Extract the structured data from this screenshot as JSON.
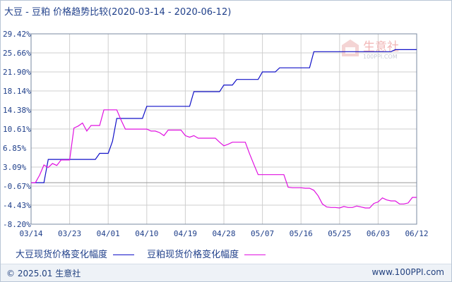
{
  "chart_data": {
    "type": "line",
    "title": "大豆 - 豆粕 价格趋势比较(2020-03-14 - 2020-06-12)",
    "x_ticks": [
      "03/14",
      "03/23",
      "04/01",
      "04/10",
      "04/19",
      "04/28",
      "05/07",
      "05/16",
      "05/25",
      "06/03",
      "06/12"
    ],
    "y_ticks": [
      "29.42%",
      "25.66%",
      "21.90%",
      "18.14%",
      "14.38%",
      "10.61%",
      "6.85%",
      "3.09%",
      "-0.67%",
      "-4.43%",
      "-8.20%"
    ],
    "ylim": [
      -8.2,
      29.42
    ],
    "x_start": "2020-03-14",
    "x_end": "2020-06-12",
    "grid": true,
    "series": [
      {
        "name": "大豆现货价格变化幅度",
        "color": "#1010c8",
        "points": [
          [
            "2020-03-14",
            0
          ],
          [
            "2020-03-15",
            0
          ],
          [
            "2020-03-16",
            0
          ],
          [
            "2020-03-17",
            0
          ],
          [
            "2020-03-18",
            4.6
          ],
          [
            "2020-03-19",
            4.6
          ],
          [
            "2020-03-20",
            4.6
          ],
          [
            "2020-03-21",
            4.6
          ],
          [
            "2020-03-22",
            4.6
          ],
          [
            "2020-03-23",
            4.6
          ],
          [
            "2020-03-24",
            4.6
          ],
          [
            "2020-03-25",
            4.6
          ],
          [
            "2020-03-26",
            4.6
          ],
          [
            "2020-03-27",
            4.6
          ],
          [
            "2020-03-28",
            4.6
          ],
          [
            "2020-03-29",
            4.6
          ],
          [
            "2020-03-30",
            5.8
          ],
          [
            "2020-03-31",
            5.8
          ],
          [
            "2020-04-01",
            5.8
          ],
          [
            "2020-04-02",
            8.2
          ],
          [
            "2020-04-03",
            12.7
          ],
          [
            "2020-04-04",
            12.7
          ],
          [
            "2020-04-05",
            12.7
          ],
          [
            "2020-04-06",
            12.7
          ],
          [
            "2020-04-07",
            12.7
          ],
          [
            "2020-04-08",
            12.7
          ],
          [
            "2020-04-09",
            12.7
          ],
          [
            "2020-04-10",
            15.1
          ],
          [
            "2020-04-11",
            15.1
          ],
          [
            "2020-04-12",
            15.1
          ],
          [
            "2020-04-13",
            15.1
          ],
          [
            "2020-04-14",
            15.1
          ],
          [
            "2020-04-15",
            15.1
          ],
          [
            "2020-04-16",
            15.1
          ],
          [
            "2020-04-17",
            15.1
          ],
          [
            "2020-04-18",
            15.1
          ],
          [
            "2020-04-19",
            15.1
          ],
          [
            "2020-04-20",
            15.1
          ],
          [
            "2020-04-21",
            18.0
          ],
          [
            "2020-04-22",
            18.0
          ],
          [
            "2020-04-23",
            18.0
          ],
          [
            "2020-04-24",
            18.0
          ],
          [
            "2020-04-25",
            18.0
          ],
          [
            "2020-04-26",
            18.0
          ],
          [
            "2020-04-27",
            18.0
          ],
          [
            "2020-04-28",
            19.3
          ],
          [
            "2020-04-29",
            19.3
          ],
          [
            "2020-04-30",
            19.3
          ],
          [
            "2020-05-01",
            20.4
          ],
          [
            "2020-05-02",
            20.4
          ],
          [
            "2020-05-03",
            20.4
          ],
          [
            "2020-05-04",
            20.4
          ],
          [
            "2020-05-05",
            20.4
          ],
          [
            "2020-05-06",
            20.4
          ],
          [
            "2020-05-07",
            21.9
          ],
          [
            "2020-05-08",
            21.9
          ],
          [
            "2020-05-09",
            21.9
          ],
          [
            "2020-05-10",
            21.9
          ],
          [
            "2020-05-11",
            22.7
          ],
          [
            "2020-05-12",
            22.7
          ],
          [
            "2020-05-13",
            22.7
          ],
          [
            "2020-05-14",
            22.7
          ],
          [
            "2020-05-15",
            22.7
          ],
          [
            "2020-05-16",
            22.7
          ],
          [
            "2020-05-17",
            22.7
          ],
          [
            "2020-05-18",
            22.7
          ],
          [
            "2020-05-19",
            25.9
          ],
          [
            "2020-05-20",
            25.9
          ],
          [
            "2020-05-21",
            25.9
          ],
          [
            "2020-05-22",
            25.9
          ],
          [
            "2020-05-23",
            25.9
          ],
          [
            "2020-05-24",
            25.9
          ],
          [
            "2020-05-25",
            25.9
          ],
          [
            "2020-05-26",
            25.9
          ],
          [
            "2020-05-27",
            25.9
          ],
          [
            "2020-05-28",
            25.9
          ],
          [
            "2020-05-29",
            25.9
          ],
          [
            "2020-05-30",
            25.9
          ],
          [
            "2020-05-31",
            25.9
          ],
          [
            "2020-06-01",
            25.9
          ],
          [
            "2020-06-02",
            25.9
          ],
          [
            "2020-06-03",
            25.9
          ],
          [
            "2020-06-04",
            25.9
          ],
          [
            "2020-06-05",
            25.9
          ],
          [
            "2020-06-06",
            25.9
          ],
          [
            "2020-06-07",
            26.3
          ],
          [
            "2020-06-08",
            26.3
          ],
          [
            "2020-06-09",
            26.3
          ],
          [
            "2020-06-10",
            26.3
          ],
          [
            "2020-06-11",
            26.3
          ],
          [
            "2020-06-12",
            26.3
          ]
        ]
      },
      {
        "name": "豆粕现货价格变化幅度",
        "color": "#e010e0",
        "points": [
          [
            "2020-03-14",
            0
          ],
          [
            "2020-03-15",
            0
          ],
          [
            "2020-03-16",
            1.5
          ],
          [
            "2020-03-17",
            3.5
          ],
          [
            "2020-03-18",
            3.0
          ],
          [
            "2020-03-19",
            3.8
          ],
          [
            "2020-03-20",
            3.4
          ],
          [
            "2020-03-21",
            4.5
          ],
          [
            "2020-03-22",
            4.5
          ],
          [
            "2020-03-23",
            4.5
          ],
          [
            "2020-03-24",
            10.8
          ],
          [
            "2020-03-25",
            11.2
          ],
          [
            "2020-03-26",
            11.8
          ],
          [
            "2020-03-27",
            10.2
          ],
          [
            "2020-03-28",
            11.3
          ],
          [
            "2020-03-29",
            11.3
          ],
          [
            "2020-03-30",
            11.3
          ],
          [
            "2020-03-31",
            14.4
          ],
          [
            "2020-04-01",
            14.4
          ],
          [
            "2020-04-02",
            14.4
          ],
          [
            "2020-04-03",
            14.4
          ],
          [
            "2020-04-04",
            12.4
          ],
          [
            "2020-04-05",
            10.6
          ],
          [
            "2020-04-06",
            10.6
          ],
          [
            "2020-04-07",
            10.6
          ],
          [
            "2020-04-08",
            10.6
          ],
          [
            "2020-04-09",
            10.6
          ],
          [
            "2020-04-10",
            10.6
          ],
          [
            "2020-04-11",
            10.2
          ],
          [
            "2020-04-12",
            10.2
          ],
          [
            "2020-04-13",
            9.9
          ],
          [
            "2020-04-14",
            9.3
          ],
          [
            "2020-04-15",
            10.4
          ],
          [
            "2020-04-16",
            10.4
          ],
          [
            "2020-04-17",
            10.4
          ],
          [
            "2020-04-18",
            10.4
          ],
          [
            "2020-04-19",
            9.3
          ],
          [
            "2020-04-20",
            9.0
          ],
          [
            "2020-04-21",
            9.3
          ],
          [
            "2020-04-22",
            8.8
          ],
          [
            "2020-04-23",
            8.8
          ],
          [
            "2020-04-24",
            8.8
          ],
          [
            "2020-04-25",
            8.8
          ],
          [
            "2020-04-26",
            8.8
          ],
          [
            "2020-04-27",
            8.0
          ],
          [
            "2020-04-28",
            7.3
          ],
          [
            "2020-04-29",
            7.6
          ],
          [
            "2020-04-30",
            8.0
          ],
          [
            "2020-05-01",
            8.0
          ],
          [
            "2020-05-02",
            8.0
          ],
          [
            "2020-05-03",
            8.0
          ],
          [
            "2020-05-04",
            5.7
          ],
          [
            "2020-05-05",
            3.6
          ],
          [
            "2020-05-06",
            1.6
          ],
          [
            "2020-05-07",
            1.6
          ],
          [
            "2020-05-08",
            1.6
          ],
          [
            "2020-05-09",
            1.6
          ],
          [
            "2020-05-10",
            1.6
          ],
          [
            "2020-05-11",
            1.6
          ],
          [
            "2020-05-12",
            1.6
          ],
          [
            "2020-05-13",
            -0.9
          ],
          [
            "2020-05-14",
            -1.0
          ],
          [
            "2020-05-15",
            -1.0
          ],
          [
            "2020-05-16",
            -1.0
          ],
          [
            "2020-05-17",
            -1.1
          ],
          [
            "2020-05-18",
            -1.1
          ],
          [
            "2020-05-19",
            -1.5
          ],
          [
            "2020-05-20",
            -2.6
          ],
          [
            "2020-05-21",
            -4.2
          ],
          [
            "2020-05-22",
            -4.8
          ],
          [
            "2020-05-23",
            -4.9
          ],
          [
            "2020-05-24",
            -4.9
          ],
          [
            "2020-05-25",
            -5.0
          ],
          [
            "2020-05-26",
            -4.7
          ],
          [
            "2020-05-27",
            -4.9
          ],
          [
            "2020-05-28",
            -4.9
          ],
          [
            "2020-05-29",
            -4.6
          ],
          [
            "2020-05-30",
            -4.8
          ],
          [
            "2020-05-31",
            -5.0
          ],
          [
            "2020-06-01",
            -5.0
          ],
          [
            "2020-06-02",
            -4.1
          ],
          [
            "2020-06-03",
            -3.8
          ],
          [
            "2020-06-04",
            -3.0
          ],
          [
            "2020-06-05",
            -3.4
          ],
          [
            "2020-06-06",
            -3.6
          ],
          [
            "2020-06-07",
            -3.6
          ],
          [
            "2020-06-08",
            -4.2
          ],
          [
            "2020-06-09",
            -4.2
          ],
          [
            "2020-06-10",
            -4.0
          ],
          [
            "2020-06-11",
            -2.9
          ],
          [
            "2020-06-12",
            -2.9
          ]
        ]
      }
    ],
    "legend_position": "bottom-left"
  },
  "watermark": {
    "text": "生意社",
    "subtext": "100PPI.COM"
  },
  "footer": {
    "left": "© 2025.01 生意社",
    "right": "www.100PPI.com"
  },
  "colors": {
    "grid": "#cfcfcf",
    "axis": "#7a8aa0",
    "zero_line": "#999999",
    "text": "#1f3f8a"
  }
}
